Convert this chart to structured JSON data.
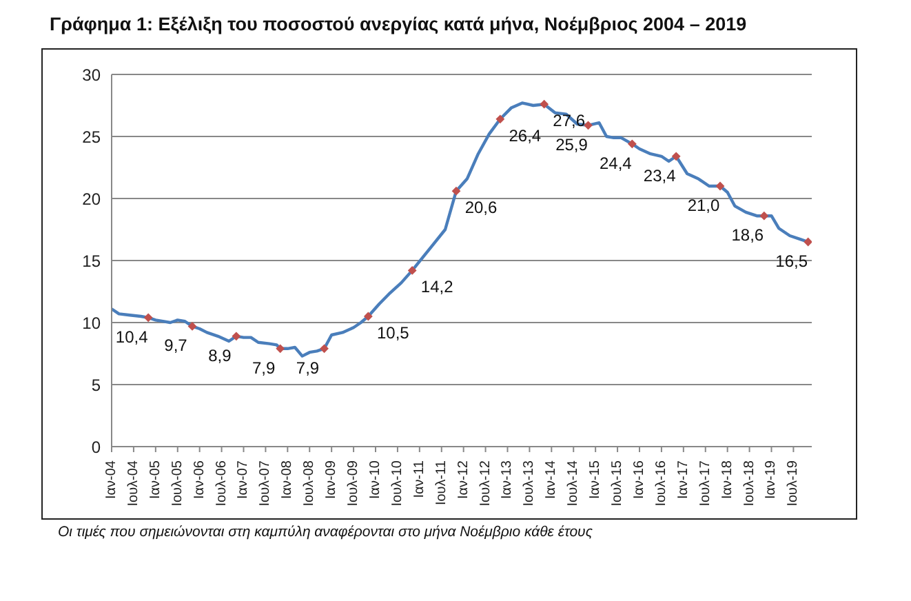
{
  "chart_data": {
    "type": "line",
    "title": "Γράφημα 1: Εξέλιξη του ποσοστού ανεργίας κατά μήνα, Νοέμβριος 2004 – 2019",
    "annotations": [
      "Οι τιμές που σημειώνονται στη καμπύλη αναφέρονται στο μήνα Νοέμβριο κάθε έτους"
    ],
    "xlim": [
      "2004-01",
      "2019-12"
    ],
    "xticks": [
      {
        "value": "2004-01",
        "label": "Ιαν-04"
      },
      {
        "value": "2004-07",
        "label": "Ιουλ-04"
      },
      {
        "value": "2005-01",
        "label": "Ιαν-05"
      },
      {
        "value": "2005-07",
        "label": "Ιουλ-05"
      },
      {
        "value": "2006-01",
        "label": "Ιαν-06"
      },
      {
        "value": "2006-07",
        "label": "Ιουλ-06"
      },
      {
        "value": "2007-01",
        "label": "Ιαν-07"
      },
      {
        "value": "2007-07",
        "label": "Ιουλ-07"
      },
      {
        "value": "2008-01",
        "label": "Ιαν-08"
      },
      {
        "value": "2008-07",
        "label": "Ιουλ-08"
      },
      {
        "value": "2009-01",
        "label": "Ιαν-09"
      },
      {
        "value": "2009-07",
        "label": "Ιουλ-09"
      },
      {
        "value": "2010-01",
        "label": "Ιαν-10"
      },
      {
        "value": "2010-07",
        "label": "Ιουλ-10"
      },
      {
        "value": "2011-01",
        "label": "Ιαν-11"
      },
      {
        "value": "2011-07",
        "label": "Ιουλ-11"
      },
      {
        "value": "2012-01",
        "label": "Ιαν-12"
      },
      {
        "value": "2012-07",
        "label": "Ιουλ-12"
      },
      {
        "value": "2013-01",
        "label": "Ιαν-13"
      },
      {
        "value": "2013-07",
        "label": "Ιουλ-13"
      },
      {
        "value": "2014-01",
        "label": "Ιαν-14"
      },
      {
        "value": "2014-07",
        "label": "Ιουλ-14"
      },
      {
        "value": "2015-01",
        "label": "Ιαν-15"
      },
      {
        "value": "2015-07",
        "label": "Ιουλ-15"
      },
      {
        "value": "2016-01",
        "label": "Ιαν-16"
      },
      {
        "value": "2016-07",
        "label": "Ιουλ-16"
      },
      {
        "value": "2017-01",
        "label": "Ιαν-17"
      },
      {
        "value": "2017-07",
        "label": "Ιουλ-17"
      },
      {
        "value": "2018-01",
        "label": "Ιαν-18"
      },
      {
        "value": "2018-07",
        "label": "Ιουλ-18"
      },
      {
        "value": "2019-01",
        "label": "Ιαν-19"
      },
      {
        "value": "2019-07",
        "label": "Ιουλ-19"
      }
    ],
    "ylim": [
      0,
      30
    ],
    "yticks": [
      0,
      5,
      10,
      15,
      20,
      25,
      30
    ],
    "grid": "y",
    "line_style": "solid",
    "marker": "none",
    "series": [
      {
        "type": "line",
        "color": "#4a7ebb",
        "x": [
          "2004-01",
          "2004-03",
          "2004-06",
          "2004-09",
          "2004-11",
          "2005-01",
          "2005-03",
          "2005-05",
          "2005-07",
          "2005-09",
          "2005-11",
          "2006-01",
          "2006-03",
          "2006-06",
          "2006-09",
          "2006-11",
          "2007-01",
          "2007-03",
          "2007-05",
          "2007-08",
          "2007-10",
          "2007-11",
          "2008-01",
          "2008-03",
          "2008-05",
          "2008-07",
          "2008-09",
          "2008-11",
          "2009-01",
          "2009-04",
          "2009-07",
          "2009-09",
          "2009-11",
          "2010-02",
          "2010-05",
          "2010-08",
          "2010-11",
          "2011-02",
          "2011-05",
          "2011-08",
          "2011-11",
          "2012-02",
          "2012-05",
          "2012-08",
          "2012-11",
          "2013-02",
          "2013-05",
          "2013-08",
          "2013-11",
          "2014-02",
          "2014-05",
          "2014-08",
          "2014-11",
          "2015-02",
          "2015-04",
          "2015-06",
          "2015-08",
          "2015-11",
          "2016-01",
          "2016-04",
          "2016-07",
          "2016-09",
          "2016-11",
          "2017-02",
          "2017-05",
          "2017-08",
          "2017-11",
          "2018-01",
          "2018-03",
          "2018-06",
          "2018-09",
          "2018-11",
          "2019-01",
          "2019-03",
          "2019-06",
          "2019-09",
          "2019-11"
        ],
        "values": [
          11.1,
          10.7,
          10.6,
          10.5,
          10.4,
          10.2,
          10.1,
          10.0,
          10.2,
          10.1,
          9.7,
          9.5,
          9.2,
          8.9,
          8.5,
          8.9,
          8.8,
          8.8,
          8.4,
          8.3,
          8.2,
          7.9,
          7.9,
          8.0,
          7.3,
          7.6,
          7.7,
          7.9,
          9.0,
          9.2,
          9.6,
          10.0,
          10.5,
          11.5,
          12.4,
          13.2,
          14.2,
          15.3,
          16.4,
          17.5,
          20.6,
          21.6,
          23.6,
          25.2,
          26.4,
          27.3,
          27.7,
          27.5,
          27.6,
          26.9,
          26.8,
          26.0,
          25.9,
          26.1,
          25.0,
          24.9,
          24.9,
          24.4,
          24.0,
          23.6,
          23.4,
          23.0,
          23.4,
          22.0,
          21.6,
          21.0,
          21.0,
          20.5,
          19.4,
          18.9,
          18.6,
          18.6,
          18.6,
          17.6,
          17.0,
          16.7,
          16.5
        ]
      },
      {
        "type": "scatter",
        "color": "#c0504d",
        "marker": "diamond",
        "x": [
          "2004-11",
          "2005-11",
          "2006-11",
          "2007-11",
          "2008-11",
          "2009-11",
          "2010-11",
          "2011-11",
          "2012-11",
          "2013-11",
          "2014-11",
          "2015-11",
          "2016-11",
          "2017-11",
          "2018-11",
          "2019-11"
        ],
        "values": [
          10.4,
          9.7,
          8.9,
          7.9,
          7.9,
          10.5,
          14.2,
          20.6,
          26.4,
          27.6,
          25.9,
          24.4,
          23.4,
          21.0,
          18.6,
          16.5
        ],
        "value_labels": [
          "10,4",
          "9,7",
          "8,9",
          "7,9",
          "7,9",
          "10,5",
          "14,2",
          "20,6",
          "26,4",
          "27,6",
          "25,9",
          "24,4",
          "23,4",
          "21,0",
          "18,6",
          "16,5"
        ]
      }
    ]
  }
}
